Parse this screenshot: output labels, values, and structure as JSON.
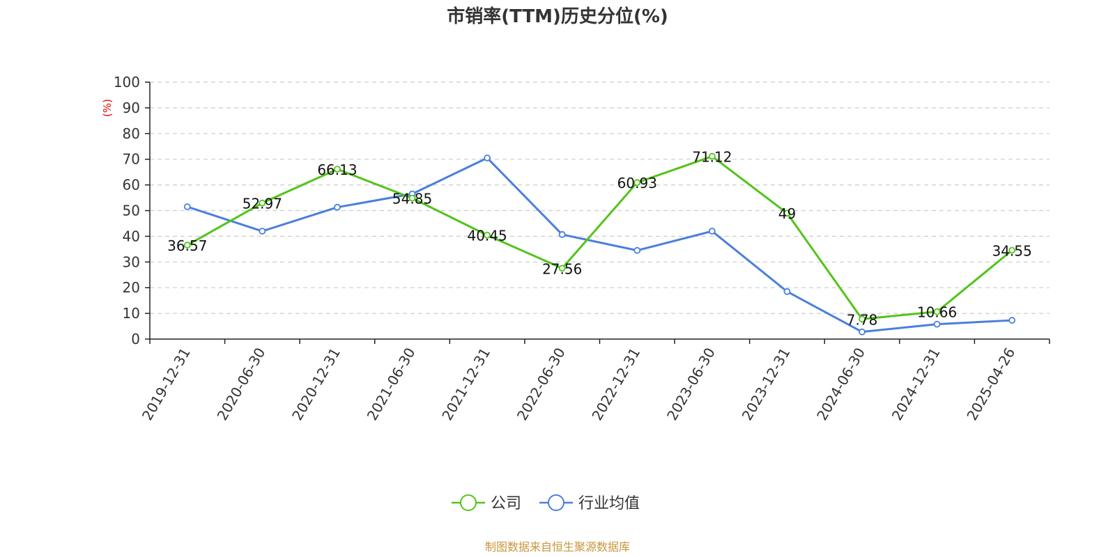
{
  "chart_data": {
    "type": "line",
    "title": "市销率(TTM)历史分位(%)",
    "ylabel": "(%)",
    "ylim": [
      0,
      100
    ],
    "yticks": [
      0,
      10,
      20,
      30,
      40,
      50,
      60,
      70,
      80,
      90,
      100
    ],
    "grid": true,
    "legend_position": "bottom",
    "categories": [
      "2019-12-31",
      "2020-06-30",
      "2020-12-31",
      "2021-06-30",
      "2021-12-31",
      "2022-06-30",
      "2022-12-31",
      "2023-06-30",
      "2023-12-31",
      "2024-06-30",
      "2024-12-31",
      "2025-04-26"
    ],
    "series": [
      {
        "name": "公司",
        "color": "#52c41a",
        "values": [
          36.57,
          52.97,
          66.13,
          54.85,
          40.45,
          27.56,
          60.93,
          71.12,
          49,
          7.78,
          10.66,
          34.55
        ],
        "labels": [
          "36.57",
          "52.97",
          "66.13",
          "54.85",
          "40.45",
          "27.56",
          "60.93",
          "71.12",
          "49",
          "7.78",
          "10.66",
          "34.55"
        ]
      },
      {
        "name": "行业均值",
        "color": "#4a7fdc",
        "values": [
          51.5,
          42,
          51.3,
          56.5,
          70.5,
          40.7,
          34.5,
          42,
          18.5,
          2.8,
          5.8,
          7.3
        ]
      }
    ]
  },
  "source_text": "制图数据来自恒生聚源数据库",
  "colors": {
    "title": "#333333",
    "ylabel": "#e00000",
    "source": "#c8963c",
    "grid": "#cccccc"
  }
}
